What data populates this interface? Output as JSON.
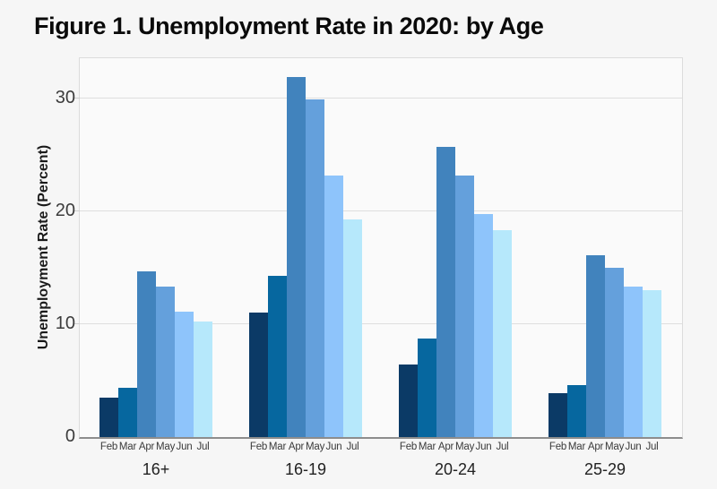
{
  "chart_data": {
    "type": "bar",
    "title": "Figure 1. Unemployment Rate in 2020: by Age",
    "ylabel": "Unemployment Rate (Percent)",
    "xlabel": "",
    "yticks": [
      0,
      10,
      20,
      30
    ],
    "ylim": [
      0,
      33.6
    ],
    "grid": true,
    "legend_position": "none",
    "categories": [
      "16+",
      "16-19",
      "20-24",
      "25-29"
    ],
    "months": [
      "Feb",
      "Mar",
      "Apr",
      "May",
      "Jun",
      "Jul"
    ],
    "month_colors": [
      "#0b3a66",
      "#06679f",
      "#4183bd",
      "#64a0dc",
      "#8ec4fb",
      "#b6e8fb"
    ],
    "groups": [
      {
        "label": "16+",
        "values": [
          3.5,
          4.4,
          14.7,
          13.3,
          11.1,
          10.2
        ]
      },
      {
        "label": "16-19",
        "values": [
          11.0,
          14.3,
          31.9,
          29.9,
          23.2,
          19.3
        ]
      },
      {
        "label": "20-24",
        "values": [
          6.4,
          8.7,
          25.7,
          23.2,
          19.8,
          18.3
        ]
      },
      {
        "label": "25-29",
        "values": [
          3.9,
          4.6,
          16.1,
          15.0,
          13.3,
          13.0
        ]
      }
    ]
  },
  "colors": {
    "page_bg": "#f6f6f6",
    "plot_bg": "#fafafa",
    "plot_border": "#dcdcdc",
    "gridline": "#dedede",
    "axis_line": "#8d8d8d",
    "title_text": "#0a0a0a",
    "tick_text": "#3c3c3c"
  }
}
